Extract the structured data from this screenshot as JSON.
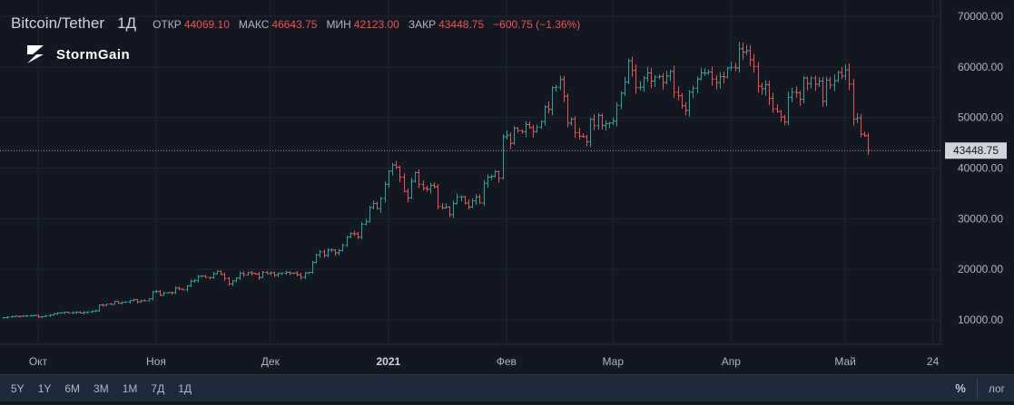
{
  "header": {
    "symbol": "Bitcoin/Tether",
    "interval": "1Д",
    "ohlc": [
      {
        "key": "ОТКР",
        "value": "44069.10"
      },
      {
        "key": "МАКС",
        "value": "46643.75"
      },
      {
        "key": "МИН",
        "value": "42123.00"
      },
      {
        "key": "ЗАКР",
        "value": "43448.75"
      }
    ],
    "change": "−600.75 (−1.36%)"
  },
  "brand": {
    "name": "StormGain",
    "icon": "stormgain-logo-icon"
  },
  "colors": {
    "background": "#131722",
    "grid": "#1f2533",
    "up": "#26a69a",
    "down": "#ef5350",
    "text": "#b2b5be",
    "price_label_bg": "#d1d4dc",
    "toolbar": "#1e2a3a"
  },
  "toolbar": {
    "ranges": [
      "5Y",
      "1Y",
      "6M",
      "3M",
      "1M",
      "7Д",
      "1Д"
    ],
    "percent_label": "%",
    "log_label": "лог"
  },
  "chart_data": {
    "type": "ohlc",
    "title": "",
    "xlabel": "",
    "ylabel": "",
    "ylim": [
      5000,
      72000
    ],
    "y_ticks": [
      "10000.00",
      "20000.00",
      "30000.00",
      "40000.00",
      "50000.00",
      "60000.00",
      "70000.00"
    ],
    "y_tick_values": [
      10000,
      20000,
      30000,
      40000,
      50000,
      60000,
      70000
    ],
    "x_ticks": [
      {
        "label": "Окт",
        "date": "2020-10-01",
        "bold": false
      },
      {
        "label": "Ноя",
        "date": "2020-11-01",
        "bold": false
      },
      {
        "label": "Дек",
        "date": "2020-12-01",
        "bold": false
      },
      {
        "label": "2021",
        "date": "2021-01-01",
        "bold": true
      },
      {
        "label": "Фев",
        "date": "2021-02-01",
        "bold": false
      },
      {
        "label": "Мар",
        "date": "2021-03-01",
        "bold": false
      },
      {
        "label": "Апр",
        "date": "2021-04-01",
        "bold": false
      },
      {
        "label": "Май",
        "date": "2021-05-01",
        "bold": false
      },
      {
        "label": "24",
        "date": "2021-05-24",
        "bold": false
      }
    ],
    "x_start_date": "2020-09-21",
    "x_end_date": "2021-05-26",
    "last_price": 43448.75,
    "last_price_label": "43448.75",
    "grid": true,
    "series": [
      {
        "start_date": "2020-09-22",
        "close": [
          10440,
          10540,
          10650,
          10720,
          10690,
          10740,
          10780,
          10820,
          10890,
          10590,
          10660,
          10780,
          10950,
          11200,
          11340,
          11400,
          11520,
          11390,
          11420,
          11500,
          11350,
          11480,
          11560,
          11680,
          11780,
          12950,
          12880,
          13100,
          13050,
          13640,
          13280,
          13450,
          13550,
          13800,
          14000,
          13550,
          13780,
          13750,
          14150,
          15550,
          15600,
          14850,
          15300,
          15400,
          15350,
          16300,
          16100,
          15950,
          16700,
          17650,
          17750,
          18600,
          18650,
          18400,
          18350,
          19100,
          19600,
          19000,
          18200,
          17100,
          17700,
          18250,
          19200,
          18900,
          19350,
          19200,
          19050,
          18350,
          19400,
          19150,
          19300,
          18850,
          19150,
          19250,
          19400,
          19200,
          19250,
          18900,
          18400,
          19300,
          19400,
          21350,
          22850,
          23450,
          22750,
          23800,
          23800,
          23250,
          23700,
          24700,
          26400,
          27050,
          27000,
          26350,
          28900,
          29400,
          32200,
          33000,
          32000,
          34000,
          36800,
          39400,
          40600,
          40200,
          38200,
          35400,
          34100,
          37400,
          39100,
          36800,
          36000,
          35800,
          36600,
          36300,
          32400,
          32100,
          32300,
          30800,
          33000,
          34300,
          34300,
          33100,
          32300,
          33500,
          34300,
          33100,
          37000,
          38200,
          38400,
          39300,
          38000,
          46200,
          46500,
          44900,
          47900,
          47400,
          47200,
          48600,
          48000,
          47200,
          48100,
          49200,
          52100,
          51600,
          55900,
          56000,
          57500,
          54200,
          48900,
          49700,
          47000,
          46300,
          46200,
          45200,
          49600,
          48400,
          50400,
          48400,
          48800,
          48900,
          49300,
          52400,
          54800,
          57000,
          61200,
          59300,
          55900,
          56000,
          57800,
          58800,
          57200,
          58000,
          58100,
          56900,
          58200,
          59100,
          55000,
          54300,
          52300,
          51400,
          55000,
          55800,
          57600,
          58800,
          58800,
          59000,
          57600,
          56900,
          58100,
          58000,
          59800,
          59900,
          59800,
          63600,
          62900,
          63200,
          61400,
          60100,
          56200,
          55700,
          56500,
          53800,
          51700,
          51200,
          50100,
          49100,
          54000,
          55000,
          54900,
          53600,
          57800,
          56700,
          57800,
          56600,
          57200,
          53200,
          57400,
          56400,
          57300,
          58900,
          58200,
          59400,
          56600,
          49700,
          49900,
          46700,
          46400,
          43500
        ]
      }
    ]
  }
}
